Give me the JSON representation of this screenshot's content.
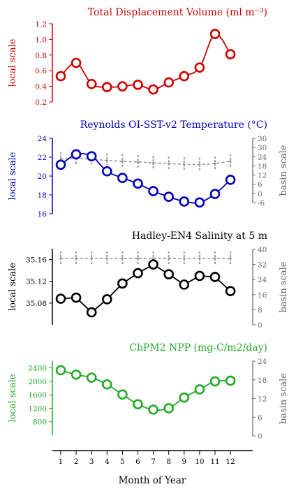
{
  "xaxis": {
    "label": "Month of Year",
    "ticks": [
      "1",
      "2",
      "3",
      "4",
      "5",
      "6",
      "7",
      "8",
      "9",
      "10",
      "11",
      "12"
    ]
  },
  "chart_data": [
    {
      "type": "line",
      "title": "Total Displacement Volume (ml m⁻³)",
      "ylabel": "local scale",
      "color": "#cc0000",
      "x": [
        1,
        2,
        3,
        4,
        5,
        6,
        7,
        8,
        9,
        10,
        11,
        12
      ],
      "ylim": [
        0.2,
        1.2
      ],
      "yticks": [
        0.2,
        0.4,
        0.6,
        0.8,
        1.0,
        1.2
      ],
      "ytick_labels": [
        "0.2",
        "0.4",
        "0.6",
        "0.8",
        "1.0",
        "1.2"
      ],
      "series": [
        {
          "values": [
            0.53,
            0.7,
            0.43,
            0.39,
            0.4,
            0.42,
            0.36,
            0.45,
            0.53,
            0.64,
            1.07,
            0.81
          ]
        }
      ]
    },
    {
      "type": "line",
      "title": "Reynolds OI-SST-v2 Temperature (°C)",
      "ylabel": "local scale",
      "ylabel_right": "basin scale",
      "color": "#0000bb",
      "x": [
        1,
        2,
        3,
        4,
        5,
        6,
        7,
        8,
        9,
        10,
        11,
        12
      ],
      "ylim": [
        16,
        24
      ],
      "yticks": [
        16,
        18,
        20,
        22,
        24
      ],
      "ytick_labels": [
        "16",
        "18",
        "20",
        "22",
        "24"
      ],
      "y2lim": [
        -6,
        36
      ],
      "y2ticks": [
        -6,
        0,
        6,
        12,
        18,
        24,
        30,
        36
      ],
      "y2tick_labels": [
        "-6",
        "0",
        "6",
        "12",
        "18",
        "24",
        "30",
        "36"
      ],
      "series": [
        {
          "values": [
            21.2,
            22.3,
            22.1,
            20.5,
            19.8,
            19.2,
            18.4,
            17.8,
            17.3,
            17.2,
            18.1,
            19.6
          ]
        }
      ],
      "basin_series": {
        "values": [
          22.5,
          23.0,
          22.5,
          21.5,
          21.0,
          20.5,
          20.0,
          19.5,
          19.0,
          18.8,
          19.5,
          21.0
        ]
      }
    },
    {
      "type": "line",
      "title": "Hadley-EN4 Salinity at 5 m",
      "ylabel": "local scale",
      "ylabel_right": "basin scale",
      "color": "#000000",
      "x": [
        1,
        2,
        3,
        4,
        5,
        6,
        7,
        8,
        9,
        10,
        11,
        12
      ],
      "ylim": [
        35.04,
        35.18
      ],
      "yticks": [
        35.08,
        35.12,
        35.16
      ],
      "ytick_labels": [
        "35.08",
        "35.12",
        "35.16"
      ],
      "y2lim": [
        0,
        40
      ],
      "y2ticks": [
        0,
        8,
        16,
        24,
        32,
        40
      ],
      "y2tick_labels": [
        "0",
        "8",
        "16",
        "24",
        "32",
        "40"
      ],
      "series": [
        {
          "values": [
            35.088,
            35.09,
            35.063,
            35.087,
            35.116,
            35.135,
            35.151,
            35.133,
            35.114,
            35.13,
            35.128,
            35.102
          ]
        }
      ],
      "basin_series": {
        "values": [
          35.2,
          35.2,
          35.2,
          35.2,
          35.2,
          35.2,
          35.2,
          35.2,
          35.2,
          35.2,
          35.2,
          35.2
        ]
      }
    },
    {
      "type": "line",
      "title": "CbPM2 NPP (mg-C/m2/day)",
      "ylabel": "local scale",
      "ylabel_right": "basin scale",
      "color": "#22aa22",
      "x": [
        1,
        2,
        3,
        4,
        5,
        6,
        7,
        8,
        9,
        10,
        11,
        12
      ],
      "ylim": [
        400,
        2600
      ],
      "yticks": [
        800,
        1200,
        1600,
        2000,
        2400
      ],
      "ytick_labels": [
        "800",
        "1200",
        "1600",
        "2000",
        "2400"
      ],
      "y2lim": [
        0,
        24
      ],
      "y2ticks": [
        0,
        6,
        12,
        18,
        24
      ],
      "y2tick_labels": [
        "0",
        "6",
        "12",
        "18",
        "24"
      ],
      "series": [
        {
          "values": [
            2330,
            2200,
            2110,
            1910,
            1610,
            1320,
            1160,
            1200,
            1520,
            1760,
            2000,
            2020
          ]
        }
      ]
    }
  ]
}
